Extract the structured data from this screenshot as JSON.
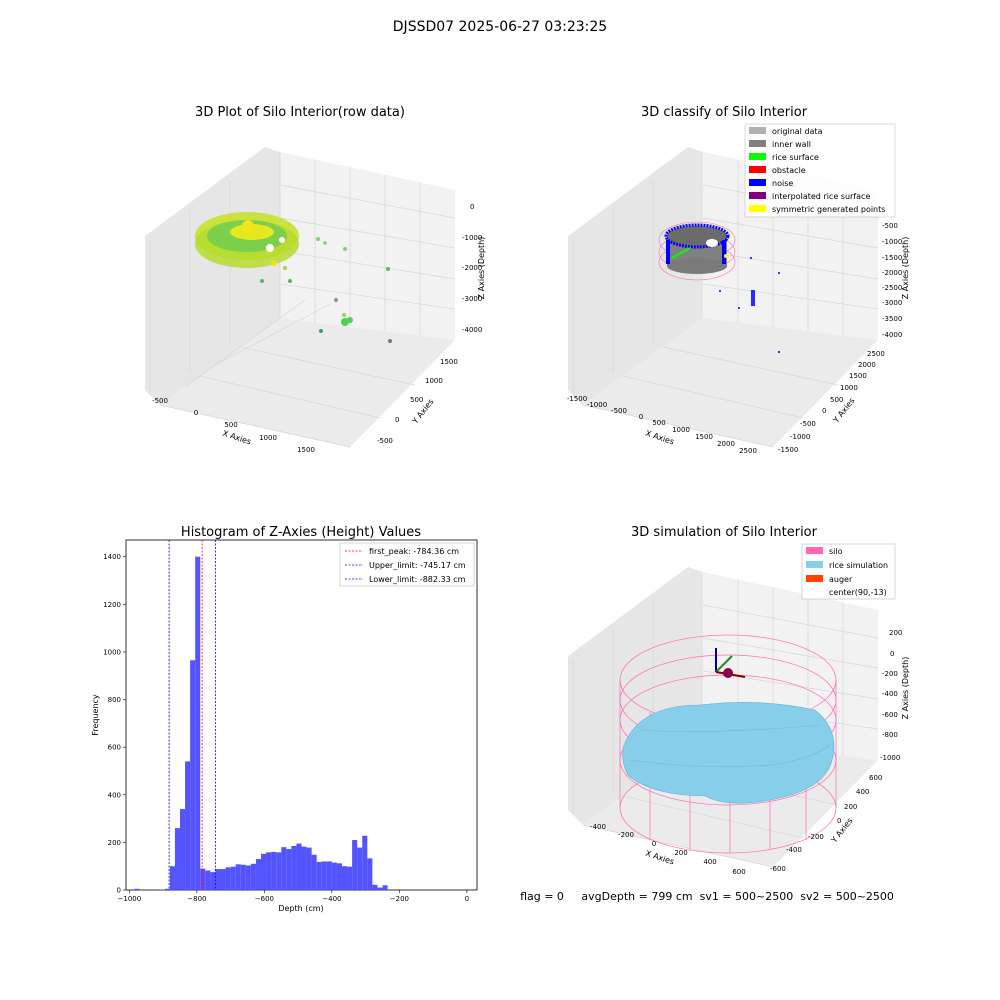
{
  "suptitle": "DJSSD07 2025-06-27 03:23:25",
  "status_text": "flag = 0     avgDepth = 799 cm  sv1 = 500~2500  sv2 = 500~2500",
  "colors": {
    "histogram_bar": "#4b4bff",
    "first_peak_line": "#ff0000",
    "limit_lines": "#0000ff",
    "silo": "#ff69b4",
    "rice_simulation": "#87ceeb",
    "auger": "#ff4500",
    "rice_surface": "#00ff00",
    "noise": "#0000ff",
    "inner_wall": "#808080",
    "original_data": "#b0b0b0",
    "obstacle": "#ff0000",
    "interpolated": "#800080",
    "symmetric": "#ffff00"
  },
  "chart_data": [
    {
      "type": "scatter",
      "title": "3D Plot of Silo Interior(row data)",
      "xlabel": "X Axies",
      "ylabel": "Y Axies",
      "zlabel": "Z Axies (Depth)",
      "x_ticks": [
        "-500",
        "0",
        "500",
        "1000",
        "1500"
      ],
      "y_ticks": [
        "-500",
        "0",
        "500",
        "1000",
        "1500"
      ],
      "z_ticks": [
        "0",
        "-1000",
        "-2000",
        "-3000",
        "-4000"
      ]
    },
    {
      "type": "scatter",
      "title": "3D classify of Silo Interior",
      "xlabel": "X Axies",
      "ylabel": "Y Axies",
      "zlabel": "Z Axies (Depth)",
      "x_ticks": [
        "-1500",
        "-1000",
        "-500",
        "0",
        "500",
        "1000",
        "1500",
        "2000",
        "2500"
      ],
      "y_ticks": [
        "-1500",
        "-1000",
        "-500",
        "0",
        "500",
        "1000",
        "1500",
        "2000",
        "2500"
      ],
      "z_ticks": [
        "-500",
        "-1000",
        "-1500",
        "-2000",
        "-2500",
        "-3000",
        "-3500",
        "-4000"
      ],
      "legend": [
        "original data",
        "inner wall",
        "rice surface",
        "obstacle",
        "noise",
        "interpolated rice surface",
        "symmetric generated points"
      ],
      "legend_colors": [
        "#b0b0b0",
        "#808080",
        "#00ff00",
        "#ff0000",
        "#0000ff",
        "#800080",
        "#ffff00"
      ],
      "legend_position": "top-right"
    },
    {
      "type": "bar",
      "title": "Histogram of Z-Axies (Height) Values",
      "xlabel": "Depth (cm)",
      "ylabel": "Frequency",
      "xlim": [
        -1010,
        30
      ],
      "ylim": [
        0,
        1470
      ],
      "x_ticks": [
        -1000,
        -800,
        -600,
        -400,
        -200,
        0
      ],
      "y_ticks": [
        0,
        200,
        400,
        600,
        800,
        1000,
        1200,
        1400
      ],
      "bin_start": -1000,
      "bin_width": 15,
      "values": [
        0,
        5,
        0,
        0,
        0,
        0,
        2,
        5,
        100,
        260,
        340,
        540,
        965,
        1400,
        90,
        82,
        75,
        88,
        88,
        95,
        98,
        108,
        106,
        103,
        110,
        130,
        152,
        158,
        160,
        158,
        180,
        172,
        185,
        195,
        182,
        178,
        148,
        118,
        120,
        120,
        115,
        112,
        100,
        98,
        210,
        178,
        228,
        133,
        22,
        10,
        20,
        0
      ],
      "vlines": [
        {
          "label": "first_peak: -784.36 cm",
          "x": -784.36,
          "color": "#ff0000"
        },
        {
          "label": "Upper_limit: -745.17 cm",
          "x": -745.17,
          "color": "#0000ff"
        },
        {
          "label": "Lower_limit: -882.33 cm",
          "x": -882.33,
          "color": "#0000ff"
        }
      ],
      "legend_position": "top-right"
    },
    {
      "type": "surface",
      "title": "3D simulation of Silo Interior",
      "xlabel": "X Axies",
      "ylabel": "Y Axies",
      "zlabel": "Z Axies (Depth)",
      "x_ticks": [
        "-400",
        "-200",
        "0",
        "200",
        "400",
        "600"
      ],
      "y_ticks": [
        "-600",
        "-400",
        "-200",
        "0",
        "200",
        "400",
        "600"
      ],
      "z_ticks": [
        "200",
        "0",
        "-200",
        "-400",
        "-600",
        "-800",
        "-1000"
      ],
      "legend": [
        "silo",
        "rice simulation",
        "auger",
        "center(90,-13)"
      ],
      "legend_colors": [
        "#ff69b4",
        "#87ceeb",
        "#ff4500",
        "none"
      ],
      "legend_position": "top-right"
    }
  ]
}
